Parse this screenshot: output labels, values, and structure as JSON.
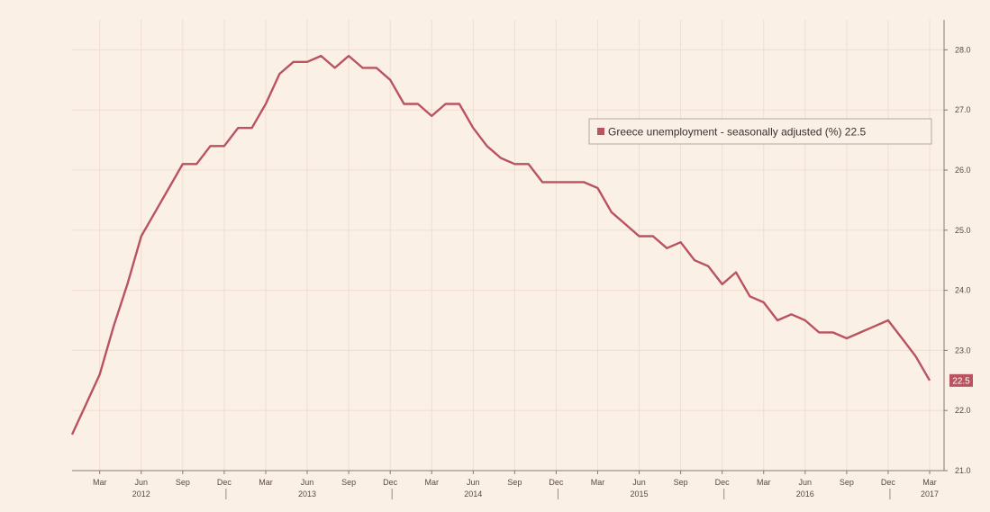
{
  "chart_data": {
    "type": "line",
    "series": [
      {
        "name": "Greece unemployment - seasonally adjusted (%)",
        "color": "#b9535f",
        "last_value_label": "22.5",
        "x": [
          "2012-01",
          "2012-02",
          "2012-03",
          "2012-04",
          "2012-05",
          "2012-06",
          "2012-07",
          "2012-08",
          "2012-09",
          "2012-10",
          "2012-11",
          "2012-12",
          "2013-01",
          "2013-02",
          "2013-03",
          "2013-04",
          "2013-05",
          "2013-06",
          "2013-07",
          "2013-08",
          "2013-09",
          "2013-10",
          "2013-11",
          "2013-12",
          "2014-01",
          "2014-02",
          "2014-03",
          "2014-04",
          "2014-05",
          "2014-06",
          "2014-07",
          "2014-08",
          "2014-09",
          "2014-10",
          "2014-11",
          "2014-12",
          "2015-01",
          "2015-02",
          "2015-03",
          "2015-04",
          "2015-05",
          "2015-06",
          "2015-07",
          "2015-08",
          "2015-09",
          "2015-10",
          "2015-11",
          "2015-12",
          "2016-01",
          "2016-02",
          "2016-03",
          "2016-04",
          "2016-05",
          "2016-06",
          "2016-07",
          "2016-08",
          "2016-09",
          "2016-10",
          "2016-11",
          "2016-12",
          "2017-01",
          "2017-02",
          "2017-03"
        ],
        "values": [
          21.6,
          22.1,
          22.6,
          23.4,
          24.1,
          24.9,
          25.3,
          25.7,
          26.1,
          26.1,
          26.4,
          26.4,
          26.7,
          26.7,
          27.1,
          27.6,
          27.8,
          27.8,
          27.9,
          27.7,
          27.9,
          27.7,
          27.7,
          27.5,
          27.1,
          27.1,
          26.9,
          27.1,
          27.1,
          26.7,
          26.4,
          26.2,
          26.1,
          26.1,
          25.8,
          25.8,
          25.8,
          25.8,
          25.7,
          25.3,
          25.1,
          24.9,
          24.9,
          24.7,
          24.8,
          24.5,
          24.4,
          24.1,
          24.3,
          23.9,
          23.8,
          23.5,
          23.6,
          23.5,
          23.3,
          23.3,
          23.2,
          23.3,
          23.4,
          23.5,
          23.2,
          22.9,
          22.5
        ]
      }
    ],
    "y_ticks": [
      "21.0",
      "22.0",
      "23.0",
      "24.0",
      "25.0",
      "26.0",
      "27.0",
      "28.0"
    ],
    "ylim": [
      21.0,
      28.5
    ],
    "x_ticks": [
      {
        "date": "2012-03",
        "label": "Mar"
      },
      {
        "date": "2012-06",
        "label": "Jun"
      },
      {
        "date": "2012-09",
        "label": "Sep"
      },
      {
        "date": "2012-12",
        "label": "Dec"
      },
      {
        "date": "2013-03",
        "label": "Mar"
      },
      {
        "date": "2013-06",
        "label": "Jun"
      },
      {
        "date": "2013-09",
        "label": "Sep"
      },
      {
        "date": "2013-12",
        "label": "Dec"
      },
      {
        "date": "2014-03",
        "label": "Mar"
      },
      {
        "date": "2014-06",
        "label": "Jun"
      },
      {
        "date": "2014-09",
        "label": "Sep"
      },
      {
        "date": "2014-12",
        "label": "Dec"
      },
      {
        "date": "2015-03",
        "label": "Mar"
      },
      {
        "date": "2015-06",
        "label": "Jun"
      },
      {
        "date": "2015-09",
        "label": "Sep"
      },
      {
        "date": "2015-12",
        "label": "Dec"
      },
      {
        "date": "2016-03",
        "label": "Mar"
      },
      {
        "date": "2016-06",
        "label": "Jun"
      },
      {
        "date": "2016-09",
        "label": "Sep"
      },
      {
        "date": "2016-12",
        "label": "Dec"
      },
      {
        "date": "2017-03",
        "label": "Mar"
      }
    ],
    "year_labels": [
      {
        "date": "2012-06",
        "label": "2012"
      },
      {
        "date": "2013-06",
        "label": "2013"
      },
      {
        "date": "2014-06",
        "label": "2014"
      },
      {
        "date": "2015-06",
        "label": "2015"
      },
      {
        "date": "2016-06",
        "label": "2016"
      },
      {
        "date": "2017-03",
        "label": "2017"
      }
    ],
    "year_separators": [
      "2012-12",
      "2013-12",
      "2014-12",
      "2015-12",
      "2016-12"
    ],
    "legend": {
      "text": "Greece unemployment - seasonally adjusted (%) 22.5",
      "placement": "top-right"
    },
    "grid": true,
    "background": "#fbf0e6",
    "grid_color": "#f1ddd0"
  }
}
